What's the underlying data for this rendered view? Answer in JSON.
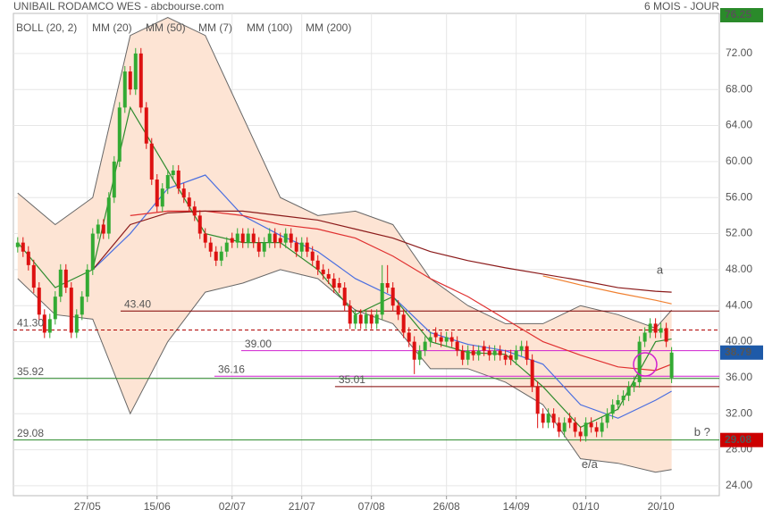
{
  "header": {
    "title": "UNIBAIL RODAMCO WES - abcbourse.com",
    "period": "6 MOIS - JOUR"
  },
  "chart_data": {
    "type": "candlestick",
    "up_color": "#33aa33",
    "down_color": "#dd1111",
    "candles": [
      [
        50.5,
        51.6,
        49.9,
        51
      ],
      [
        51,
        51.6,
        49.4,
        50
      ],
      [
        50,
        50.6,
        47.9,
        48.5
      ],
      [
        48.5,
        49.1,
        45.4,
        46
      ],
      [
        46,
        46.6,
        42.4,
        43
      ],
      [
        43,
        43.6,
        40.4,
        41
      ],
      [
        41,
        43.1,
        40.4,
        42.5
      ],
      [
        42.5,
        45.6,
        41.9,
        45
      ],
      [
        45,
        48.6,
        44.4,
        48
      ],
      [
        48,
        48.6,
        45.4,
        46
      ],
      [
        46,
        46.6,
        40.4,
        41
      ],
      [
        41,
        43.6,
        40.4,
        43
      ],
      [
        43,
        45.6,
        42.4,
        45
      ],
      [
        45,
        48.6,
        44.4,
        48
      ],
      [
        48,
        52.6,
        47.4,
        52
      ],
      [
        52,
        53.6,
        51.4,
        53
      ],
      [
        53,
        53.6,
        51.4,
        52
      ],
      [
        52,
        56.6,
        51.4,
        56
      ],
      [
        56,
        60.6,
        55.4,
        60
      ],
      [
        60,
        66.6,
        59.4,
        66
      ],
      [
        66,
        70.6,
        65.4,
        70
      ],
      [
        70,
        70.6,
        67.4,
        68
      ],
      [
        68,
        72.6,
        67.4,
        72
      ],
      [
        72,
        72.6,
        65.4,
        66
      ],
      [
        66,
        66.6,
        61.4,
        62
      ],
      [
        62,
        62.6,
        57.4,
        58
      ],
      [
        58,
        58.6,
        54.4,
        55
      ],
      [
        55,
        57.6,
        54.4,
        57
      ],
      [
        57,
        59.1,
        56.4,
        58.5
      ],
      [
        58.5,
        59.6,
        57.9,
        59
      ],
      [
        59,
        59.6,
        56.4,
        57
      ],
      [
        57,
        57.6,
        55.4,
        56
      ],
      [
        56,
        56.6,
        54.4,
        55
      ],
      [
        55,
        55.6,
        53.4,
        54
      ],
      [
        54,
        54.6,
        51.4,
        52
      ],
      [
        52,
        52.6,
        50.4,
        51
      ],
      [
        51,
        51.6,
        49.4,
        50
      ],
      [
        50,
        50.6,
        48.4,
        49
      ],
      [
        49,
        50.6,
        48.4,
        50
      ],
      [
        50,
        51.6,
        49.4,
        51
      ],
      [
        51.5,
        52.1,
        50.4,
        51
      ],
      [
        51,
        52.6,
        50.4,
        52
      ],
      [
        52,
        52.6,
        50.4,
        51
      ],
      [
        51,
        52.6,
        50.4,
        52
      ],
      [
        52,
        52.6,
        50.4,
        51
      ],
      [
        51,
        51.6,
        49.4,
        50
      ],
      [
        50,
        51.6,
        49.4,
        51
      ],
      [
        51,
        52.6,
        50.4,
        52
      ],
      [
        52,
        52.6,
        50.4,
        51
      ],
      [
        51.5,
        52.1,
        50.4,
        51
      ],
      [
        51,
        52.6,
        50.4,
        52
      ],
      [
        52,
        52.6,
        50.4,
        51
      ],
      [
        51,
        51.6,
        49.4,
        50
      ],
      [
        50,
        51.6,
        49.4,
        51
      ],
      [
        51,
        51.6,
        49.4,
        50
      ],
      [
        50,
        50.6,
        48.4,
        49
      ],
      [
        49,
        49.6,
        47.4,
        48
      ],
      [
        48,
        48.6,
        46.9,
        47.5
      ],
      [
        47.5,
        48.1,
        46.4,
        47
      ],
      [
        47,
        47.6,
        45.4,
        46
      ],
      [
        46.5,
        47.1,
        45.4,
        46
      ],
      [
        46,
        46.6,
        43.4,
        44
      ],
      [
        44,
        44.6,
        41.4,
        42
      ],
      [
        42,
        43.6,
        41.4,
        43
      ],
      [
        43,
        43.6,
        41.4,
        42
      ],
      [
        42,
        43.6,
        41.4,
        43
      ],
      [
        43,
        43.6,
        41.4,
        42
      ],
      [
        42,
        43.6,
        41.4,
        43
      ],
      [
        43,
        48.5,
        42.4,
        46.5
      ],
      [
        46.5,
        48.5,
        45.4,
        46
      ],
      [
        46,
        46.6,
        43.4,
        44
      ],
      [
        44,
        44.6,
        42.4,
        43
      ],
      [
        43,
        43.6,
        40.4,
        41
      ],
      [
        41,
        41.6,
        39.4,
        40
      ],
      [
        40,
        40.6,
        36.4,
        38
      ],
      [
        38,
        39.6,
        37.4,
        39
      ],
      [
        39,
        40.6,
        38.4,
        40
      ],
      [
        40,
        41.1,
        39.4,
        40.5
      ],
      [
        41,
        41.6,
        39.9,
        40.5
      ],
      [
        40.5,
        41.1,
        39.4,
        40
      ],
      [
        40,
        41.1,
        39.4,
        40.5
      ],
      [
        40.5,
        41.1,
        39.4,
        40
      ],
      [
        40,
        40.6,
        38.4,
        39
      ],
      [
        39,
        39.6,
        37.4,
        38
      ],
      [
        38,
        39.6,
        37.4,
        39
      ],
      [
        39,
        39.6,
        37.9,
        38.5
      ],
      [
        38.5,
        39.6,
        37.9,
        39
      ],
      [
        39.5,
        40.1,
        38.4,
        39
      ],
      [
        39,
        39.6,
        37.9,
        38.5
      ],
      [
        38.5,
        39.6,
        37.9,
        39
      ],
      [
        39,
        39.6,
        37.9,
        38.5
      ],
      [
        38.5,
        39.1,
        37.4,
        38
      ],
      [
        38.5,
        39.1,
        37.4,
        38
      ],
      [
        38,
        39.6,
        37.4,
        39
      ],
      [
        39,
        40.1,
        38.4,
        39.5
      ],
      [
        39.5,
        40.1,
        37.4,
        38
      ],
      [
        38,
        38.6,
        34.4,
        35
      ],
      [
        35,
        35.6,
        30.4,
        32
      ],
      [
        32,
        32.6,
        30.4,
        31
      ],
      [
        31,
        32.6,
        30.4,
        32
      ],
      [
        32,
        32.6,
        30.4,
        31
      ],
      [
        31,
        31.6,
        29.4,
        30
      ],
      [
        30,
        31.6,
        29.4,
        31
      ],
      [
        31.5,
        32.1,
        30.4,
        31
      ],
      [
        31,
        31.6,
        29.4,
        30
      ],
      [
        30,
        30.6,
        28.9,
        29.5
      ],
      [
        29.5,
        31.6,
        28.9,
        31
      ],
      [
        31,
        31.6,
        29.9,
        30.5
      ],
      [
        30.5,
        31.1,
        29.4,
        30
      ],
      [
        30,
        31.6,
        29.4,
        31
      ],
      [
        31,
        32.6,
        30.4,
        32
      ],
      [
        32,
        33.6,
        31.4,
        33
      ],
      [
        33,
        34.1,
        32.4,
        33.5
      ],
      [
        33.5,
        34.6,
        32.9,
        34
      ],
      [
        34,
        35.6,
        33.4,
        35
      ],
      [
        35,
        36.1,
        34.4,
        35.5
      ],
      [
        35.5,
        40.6,
        34.9,
        40
      ],
      [
        40,
        41.6,
        39.4,
        41
      ],
      [
        41,
        42.6,
        40.4,
        42
      ],
      [
        42,
        42.6,
        40.4,
        41
      ],
      [
        41,
        42.1,
        40.4,
        41.5
      ],
      [
        41.5,
        42.1,
        39.4,
        40
      ],
      [
        36,
        39.4,
        35.4,
        38.79
      ]
    ],
    "xlim": [
      -0.8,
      130.9
    ],
    "xticks": [
      {
        "value": 13,
        "label": "27/05"
      },
      {
        "value": 26,
        "label": "15/06"
      },
      {
        "value": 40,
        "label": "02/07"
      },
      {
        "value": 53,
        "label": "21/07"
      },
      {
        "value": 66,
        "label": "07/08"
      },
      {
        "value": 80,
        "label": "26/08"
      },
      {
        "value": 93,
        "label": "14/09"
      },
      {
        "value": 106,
        "label": "01/10"
      },
      {
        "value": 120,
        "label": "20/10"
      }
    ],
    "ylim": [
      22.9,
      76.45
    ],
    "yticks": [
      {
        "value": 24,
        "label": "24.00"
      },
      {
        "value": 28,
        "label": "28.00"
      },
      {
        "value": 32,
        "label": "32.00"
      },
      {
        "value": 36,
        "label": "36.00"
      },
      {
        "value": 40,
        "label": "40.00"
      },
      {
        "value": 44,
        "label": "44.00"
      },
      {
        "value": 48,
        "label": "48.00"
      },
      {
        "value": 52,
        "label": "52.00"
      },
      {
        "value": 56,
        "label": "56.00"
      },
      {
        "value": 60,
        "label": "60.00"
      },
      {
        "value": 64,
        "label": "64.00"
      },
      {
        "value": 68,
        "label": "68.00"
      },
      {
        "value": 72,
        "label": "72.00"
      }
    ],
    "grid": true,
    "bollinger": {
      "name": "BOLL (20, 2)",
      "color": "#666666",
      "fill": "#fde4d4",
      "x": [
        0,
        7,
        14,
        21,
        28,
        35,
        42,
        49,
        56,
        63,
        70,
        77,
        84,
        91,
        98,
        105,
        112,
        119,
        122
      ],
      "upper": [
        56.5,
        53,
        56,
        74,
        76,
        74,
        65,
        56,
        54,
        54.5,
        53,
        47,
        44,
        42,
        42,
        44,
        43,
        41.5,
        43.5
      ],
      "lower": [
        47,
        43,
        42.5,
        32,
        40,
        45.5,
        46.5,
        48,
        47,
        43.5,
        42,
        37,
        37,
        35.5,
        33,
        27,
        26.5,
        25.5,
        25.8
      ]
    },
    "series": [
      {
        "name": "MM (20)",
        "color": "#4a6ee0",
        "x": [
          0,
          7,
          14,
          21,
          28,
          35,
          42,
          49,
          56,
          63,
          70,
          77,
          84,
          91,
          98,
          105,
          112,
          119,
          122
        ],
        "values": [
          null,
          null,
          48,
          52,
          57,
          58.5,
          54,
          51.8,
          50,
          47,
          45,
          41,
          39.7,
          39,
          37.5,
          33,
          31.5,
          33.5,
          34.5
        ]
      },
      {
        "name": "MM (50)",
        "color": "#e03030",
        "x": [
          0,
          7,
          14,
          21,
          28,
          35,
          42,
          49,
          56,
          63,
          70,
          77,
          84,
          91,
          98,
          105,
          112,
          119,
          122
        ],
        "values": [
          null,
          null,
          null,
          54,
          54.5,
          54.5,
          54,
          53,
          52.5,
          51.5,
          49.5,
          47,
          45,
          42.5,
          40,
          38.5,
          37.2,
          36.8,
          37.5
        ]
      },
      {
        "name": "MM (7)",
        "color": "#2e8b2e",
        "x": [
          0,
          7,
          14,
          21,
          28,
          35,
          42,
          49,
          56,
          63,
          70,
          77,
          84,
          91,
          98,
          105,
          112,
          119,
          122
        ],
        "values": [
          51,
          46,
          48,
          66,
          59,
          52,
          51,
          51,
          48,
          43,
          45,
          40,
          38.8,
          38.6,
          35,
          30.5,
          32.5,
          40,
          40.3
        ]
      },
      {
        "name": "MM (100)",
        "color": "#f08030",
        "x": [
          0,
          7,
          14,
          21,
          28,
          35,
          42,
          49,
          56,
          63,
          70,
          77,
          84,
          91,
          98,
          105,
          112,
          119,
          122
        ],
        "values": [
          null,
          null,
          null,
          null,
          null,
          null,
          null,
          null,
          null,
          null,
          null,
          null,
          null,
          null,
          47.3,
          46.3,
          45.4,
          44.6,
          44.2
        ]
      },
      {
        "name": "MM (200)",
        "color": "#8b1a1a",
        "x": [
          0,
          7,
          14,
          21,
          28,
          35,
          42,
          49,
          56,
          63,
          70,
          77,
          84,
          91,
          98,
          105,
          112,
          119,
          122
        ],
        "values": [
          null,
          null,
          48,
          53,
          54.3,
          54.5,
          54.5,
          54,
          53.5,
          52.5,
          51.5,
          50,
          49,
          48.2,
          47.5,
          46.8,
          46,
          45.6,
          45.5
        ]
      }
    ],
    "levels": [
      {
        "value": 43.4,
        "label": "43.40",
        "color": "#800000",
        "from": 19.2
      },
      {
        "value": 41.3,
        "label": "41.30",
        "color": "#b00000",
        "from": -0.8,
        "style": "dashed"
      },
      {
        "value": 39.0,
        "label": "39.00",
        "color": "#d020d0",
        "from": 41.7
      },
      {
        "value": 36.16,
        "label": "36.16",
        "color": "#d020d0",
        "from": 36.7
      },
      {
        "value": 35.92,
        "label": "35.92",
        "color": "#2a8a2a",
        "from": -0.8
      },
      {
        "value": 35.01,
        "label": "35.01",
        "color": "#800000",
        "from": 59.2
      },
      {
        "value": 29.08,
        "label": "29.08",
        "color": "#2a8a2a",
        "from": -0.8
      }
    ],
    "price_labels": [
      {
        "value": 76.25,
        "label": "76.25",
        "color": "#2a8a2a"
      },
      {
        "value": 38.79,
        "label": "38.79",
        "color": "#1e5aa8"
      },
      {
        "value": 29.08,
        "label": "29.08",
        "color": "#cc0000"
      }
    ],
    "annotations": [
      {
        "text": "a",
        "x": 119.2,
        "y": 47.9,
        "color": "#1a1a80"
      },
      {
        "text": "b ?",
        "x": 126.2,
        "y": 29.9,
        "color": "#1a1a80"
      },
      {
        "text": "e/a",
        "x": 105.2,
        "y": 26.3,
        "color": "#cc0000"
      }
    ]
  }
}
